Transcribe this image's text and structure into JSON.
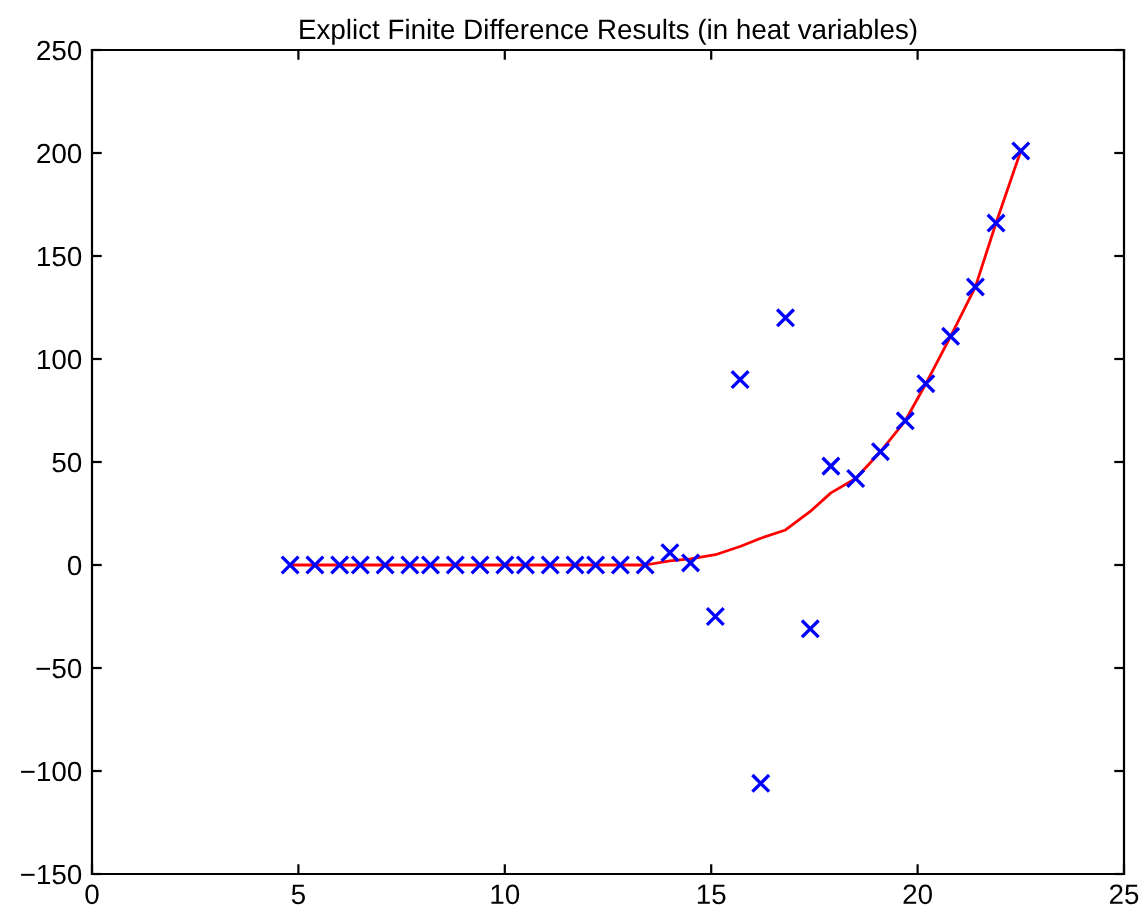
{
  "chart_data": {
    "type": "scatter",
    "title": "Explict Finite Difference Results (in heat variables)",
    "xlim": [
      0,
      25
    ],
    "xticks": [
      0,
      5,
      10,
      15,
      20,
      25
    ],
    "ylim": [
      -150,
      250
    ],
    "yticks": [
      -150,
      -100,
      -50,
      0,
      50,
      100,
      150,
      200,
      250
    ],
    "grid": false,
    "legend": false,
    "series": [
      {
        "type": "line",
        "color": "#ff0000",
        "marker": "none",
        "line_style": "solid",
        "x": [
          4.8,
          5.4,
          6,
          6.5,
          7.1,
          7.7,
          8.2,
          8.8,
          9.4,
          10,
          10.5,
          11.1,
          11.7,
          12.2,
          12.8,
          13.4,
          14,
          14.5,
          15.1,
          15.7,
          16.2,
          16.8,
          17.4,
          17.9,
          18.5,
          19.1,
          19.7,
          20.2,
          20.8,
          21.4,
          21.9,
          22.5
        ],
        "values": [
          0,
          0,
          0,
          0,
          0,
          0,
          0,
          0,
          0,
          0,
          0,
          0,
          0,
          0,
          0,
          0,
          2,
          3,
          5,
          9,
          13,
          17,
          26,
          35,
          42,
          55,
          70,
          88,
          111,
          135,
          166,
          201
        ]
      },
      {
        "color": "#0000ff",
        "marker": "cross",
        "x": [
          4.8,
          5.4,
          6,
          6.5,
          7.1,
          7.7,
          8.2,
          8.8,
          9.4,
          10,
          10.5,
          11.1,
          11.7,
          12.2,
          12.8,
          13.4,
          14,
          14.5,
          15.1,
          15.7,
          16.2,
          16.8,
          17.4,
          17.9,
          18.5,
          19.1,
          19.7,
          20.2,
          20.8,
          21.4,
          21.9,
          22.5
        ],
        "values": [
          0,
          0,
          0,
          0,
          0,
          0,
          0,
          0,
          0,
          0,
          0,
          0,
          0,
          0,
          0,
          0,
          6,
          1,
          -25,
          90,
          -106,
          120,
          -31,
          48,
          42,
          55,
          70,
          88,
          111,
          135,
          166,
          201
        ]
      }
    ]
  }
}
